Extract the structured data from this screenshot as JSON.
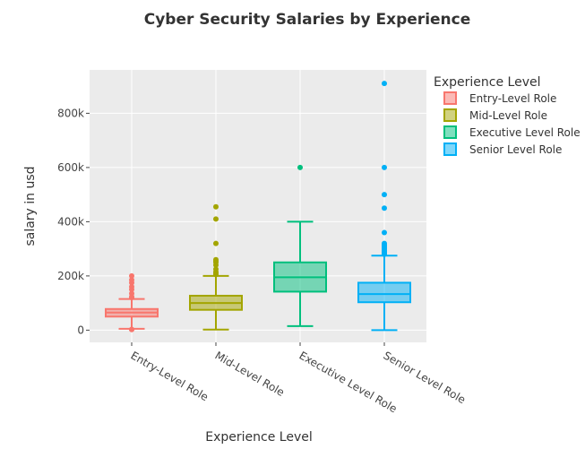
{
  "chart_data": {
    "type": "box",
    "title": "Cyber Security Salaries by Experience",
    "xlabel": "Experience Level",
    "ylabel": "salary in usd",
    "ylim": [
      -45000,
      960000
    ],
    "yticks": [
      0,
      200000,
      400000,
      600000,
      800000
    ],
    "ytick_labels": [
      "0",
      "200k",
      "400k",
      "600k",
      "800k"
    ],
    "grid": true,
    "legend_title": "Experience Level",
    "legend_position": "top-right",
    "categories": [
      "Entry-Level Role",
      "Mid-Level Role",
      "Executive Level Role",
      "Senior Level Role"
    ],
    "series": [
      {
        "name": "Entry-Level Role",
        "color": "#F8766D",
        "min": 5000,
        "q1": 50000,
        "median": 65000,
        "q3": 78000,
        "max": 115000,
        "outliers": [
          120000,
          123000,
          135000,
          150000,
          160000,
          175000,
          185000,
          200000,
          2000,
          3000
        ]
      },
      {
        "name": "Mid-Level Role",
        "color": "#A3A500",
        "min": 2000,
        "q1": 75000,
        "median": 100000,
        "q3": 127000,
        "max": 200000,
        "outliers": [
          205000,
          210000,
          215000,
          225000,
          240000,
          250000,
          255000,
          260000,
          320000,
          410000,
          455000
        ]
      },
      {
        "name": "Executive Level Role",
        "color": "#00BF7D",
        "min": 15000,
        "q1": 142000,
        "median": 195000,
        "q3": 250000,
        "max": 400000,
        "outliers": [
          600000
        ]
      },
      {
        "name": "Senior Level Role",
        "color": "#00B0F6",
        "min": 0,
        "q1": 103000,
        "median": 133000,
        "q3": 175000,
        "max": 275000,
        "outliers": [
          280000,
          283000,
          286000,
          290000,
          295000,
          300000,
          305000,
          310000,
          315000,
          320000,
          360000,
          450000,
          500000,
          600000,
          910000
        ]
      }
    ]
  }
}
